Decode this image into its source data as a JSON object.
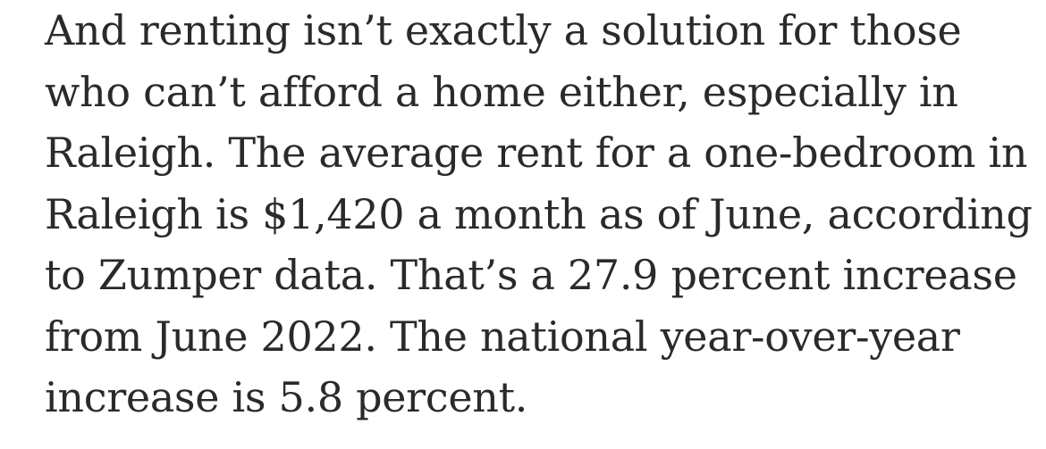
{
  "article": {
    "lines": [
      "And renting isn’t exactly a solution for those",
      "who can’t afford a home either, especially in",
      "Raleigh. The average rent for a one-bedroom in",
      "Raleigh is $1,420 a month as of June, according",
      "to Zumper data. That’s a 27.9 percent increase",
      "from June 2022. The national year-over-year",
      "increase is 5.8 percent."
    ]
  }
}
